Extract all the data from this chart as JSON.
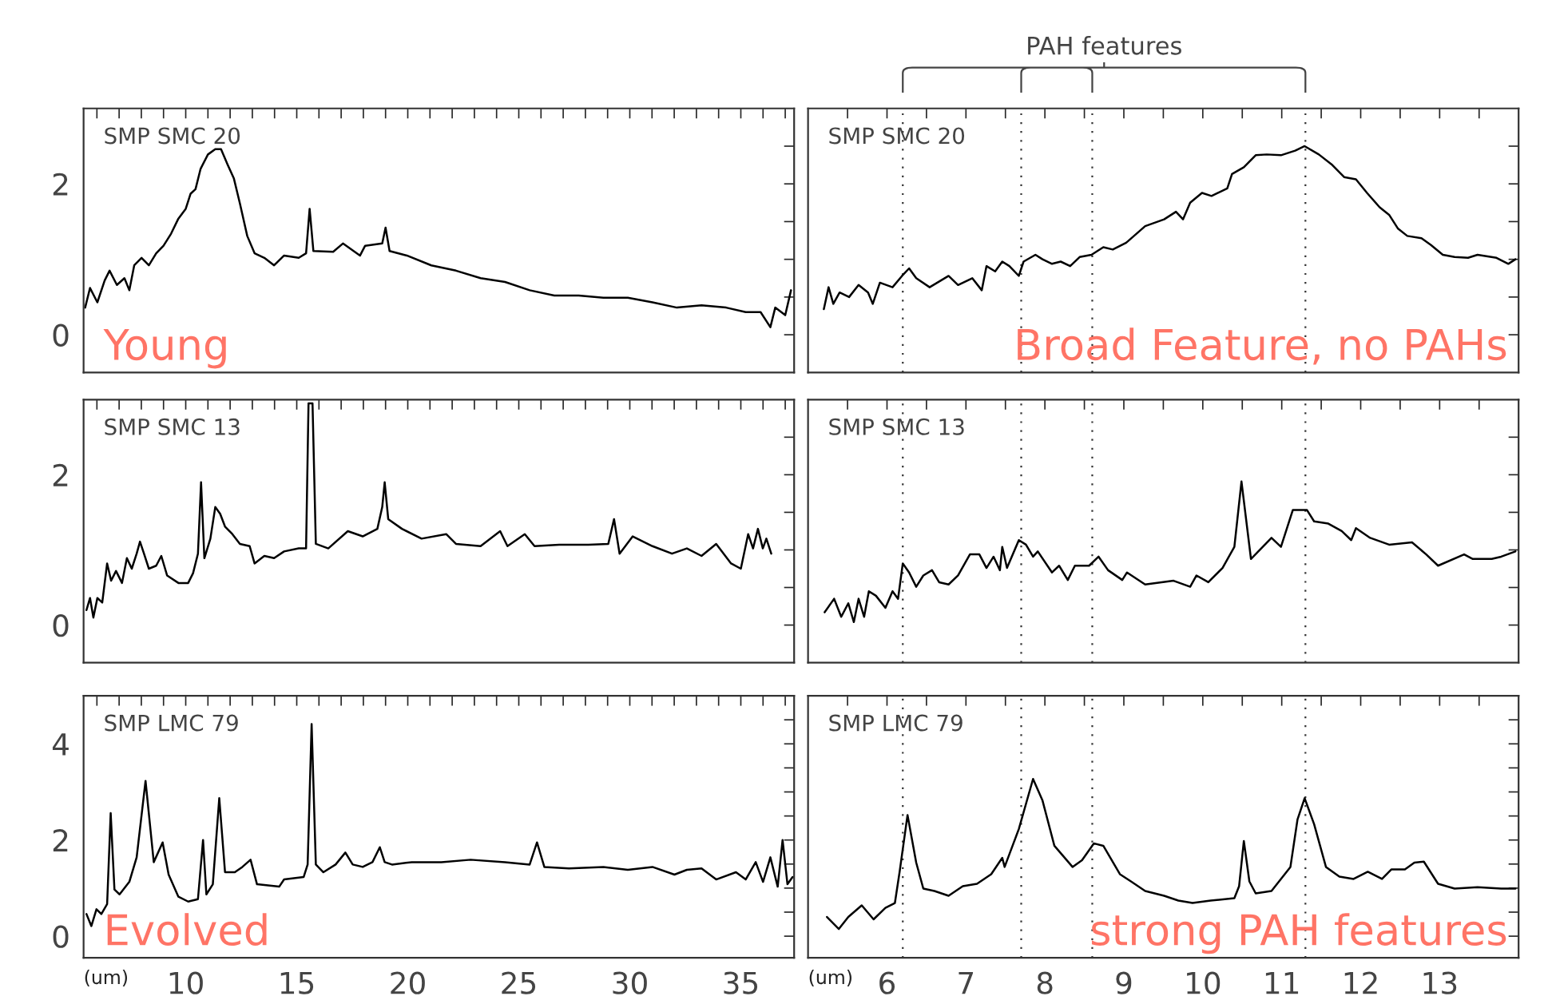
{
  "chart_data": [
    {
      "type": "line",
      "xlim": [
        5.4,
        37.4
      ],
      "ylim": [
        -0.5,
        3.0
      ],
      "tick_labels": "y",
      "grid": false,
      "xticks": [
        {
          "value": 6,
          "label": null
        },
        {
          "value": 7,
          "label": null
        },
        {
          "value": 8,
          "label": null
        },
        {
          "value": 9,
          "label": null
        },
        10,
        {
          "value": 11,
          "label": null
        },
        {
          "value": 12,
          "label": null
        },
        {
          "value": 13,
          "label": null
        },
        {
          "value": 14,
          "label": null
        },
        15,
        {
          "value": 16,
          "label": null
        },
        {
          "value": 17,
          "label": null
        },
        {
          "value": 18,
          "label": null
        },
        {
          "value": 19,
          "label": null
        },
        20,
        {
          "value": 21,
          "label": null
        },
        {
          "value": 22,
          "label": null
        },
        {
          "value": 23,
          "label": null
        },
        {
          "value": 24,
          "label": null
        },
        25,
        {
          "value": 26,
          "label": null
        },
        {
          "value": 27,
          "label": null
        },
        {
          "value": 28,
          "label": null
        },
        {
          "value": 29,
          "label": null
        },
        30,
        {
          "value": 31,
          "label": null
        },
        {
          "value": 32,
          "label": null
        },
        {
          "value": 33,
          "label": null
        },
        {
          "value": 34,
          "label": null
        },
        35,
        {
          "value": 36,
          "label": null
        },
        {
          "value": 37,
          "label": null
        }
      ],
      "yticks": [
        0,
        {
          "value": 0.5,
          "label": null
        },
        {
          "value": 1,
          "label": null
        },
        {
          "value": 1.5,
          "label": null
        },
        2,
        {
          "value": 2.5,
          "label": null
        }
      ],
      "annotations": [
        "SMP SMC 20",
        "Young"
      ],
      "series": [
        {
          "color": "#000000",
          "x": [
            5.47,
            5.69,
            6.02,
            6.35,
            6.57,
            6.9,
            7.24,
            7.46,
            7.68,
            8.01,
            8.34,
            8.67,
            9.0,
            9.34,
            9.67,
            10.0,
            10.22,
            10.44,
            10.67,
            11.0,
            11.33,
            11.59,
            11.88,
            12.17,
            12.44,
            12.77,
            13.1,
            13.54,
            13.98,
            14.43,
            15.09,
            15.42,
            15.58,
            15.75,
            16.64,
            17.08,
            17.85,
            18.08,
            18.85,
            19.0,
            19.18,
            19.96,
            21.06,
            22.17,
            23.28,
            24.38,
            25.49,
            26.6,
            27.7,
            28.81,
            29.91,
            31.02,
            32.12,
            33.23,
            34.34,
            35.22,
            35.89,
            36.33,
            36.55,
            37.0,
            37.26
          ],
          "values": [
            0.36,
            0.62,
            0.43,
            0.72,
            0.85,
            0.66,
            0.75,
            0.59,
            0.92,
            1.02,
            0.92,
            1.08,
            1.18,
            1.34,
            1.54,
            1.67,
            1.87,
            1.93,
            2.2,
            2.39,
            2.46,
            2.46,
            2.26,
            2.07,
            1.74,
            1.31,
            1.08,
            1.02,
            0.92,
            1.05,
            1.02,
            1.08,
            1.67,
            1.11,
            1.1,
            1.21,
            1.05,
            1.18,
            1.21,
            1.42,
            1.11,
            1.05,
            0.92,
            0.85,
            0.75,
            0.7,
            0.59,
            0.52,
            0.52,
            0.49,
            0.49,
            0.43,
            0.36,
            0.39,
            0.36,
            0.3,
            0.3,
            0.1,
            0.36,
            0.26,
            0.59
          ]
        }
      ]
    },
    {
      "type": "line",
      "xlim": [
        5.0,
        14.0
      ],
      "ylim": [
        -0.5,
        3.0
      ],
      "tick_labels": false,
      "grid": false,
      "xticks": [
        {
          "value": 5.5,
          "label": null
        },
        6,
        {
          "value": 6.5,
          "label": null
        },
        7,
        {
          "value": 7.5,
          "label": null
        },
        8,
        {
          "value": 8.5,
          "label": null
        },
        9,
        {
          "value": 9.5,
          "label": null
        },
        10,
        {
          "value": 10.5,
          "label": null
        },
        11,
        {
          "value": 11.5,
          "label": null
        },
        12,
        {
          "value": 12.5,
          "label": null
        },
        13,
        {
          "value": 13.5,
          "label": null
        }
      ],
      "yticks": [
        0,
        {
          "value": 0.5,
          "label": null
        },
        {
          "value": 1,
          "label": null
        },
        {
          "value": 1.5,
          "label": null
        },
        2,
        {
          "value": 2.5,
          "label": null
        }
      ],
      "annotations": [
        "SMP SMC 20",
        "Broad Feature, no PAHs",
        "PAH features"
      ],
      "ref_lines": [
        {
          "axis": "x",
          "value": 6.2,
          "color": "#333333",
          "line_style": "dotted"
        },
        {
          "axis": "x",
          "value": 7.7,
          "color": "#333333",
          "line_style": "dotted"
        },
        {
          "axis": "x",
          "value": 8.6,
          "color": "#333333",
          "line_style": "dotted"
        },
        {
          "axis": "x",
          "value": 11.3,
          "color": "#333333",
          "line_style": "dotted"
        }
      ],
      "series": [
        {
          "color": "#000000",
          "x": [
            5.2,
            5.26,
            5.32,
            5.4,
            5.52,
            5.64,
            5.76,
            5.82,
            5.91,
            6.07,
            6.19,
            6.28,
            6.37,
            6.54,
            6.78,
            6.9,
            7.08,
            7.2,
            7.26,
            7.37,
            7.46,
            7.55,
            7.67,
            7.73,
            7.88,
            7.97,
            8.09,
            8.2,
            8.32,
            8.44,
            8.59,
            8.74,
            8.86,
            9.03,
            9.27,
            9.51,
            9.66,
            9.75,
            9.84,
            9.99,
            10.11,
            10.31,
            10.37,
            10.52,
            10.67,
            10.81,
            10.99,
            11.17,
            11.29,
            11.47,
            11.64,
            11.79,
            11.94,
            12.08,
            12.24,
            12.36,
            12.47,
            12.59,
            12.77,
            12.89,
            13.04,
            13.19,
            13.36,
            13.48,
            13.72,
            13.87,
            13.96
          ],
          "values": [
            0.34,
            0.63,
            0.41,
            0.56,
            0.5,
            0.66,
            0.56,
            0.41,
            0.69,
            0.63,
            0.78,
            0.88,
            0.75,
            0.63,
            0.78,
            0.66,
            0.75,
            0.59,
            0.91,
            0.84,
            0.97,
            0.91,
            0.78,
            0.97,
            1.06,
            1.0,
            0.94,
            0.97,
            0.91,
            1.03,
            1.06,
            1.16,
            1.13,
            1.22,
            1.44,
            1.53,
            1.63,
            1.53,
            1.75,
            1.88,
            1.84,
            1.94,
            2.13,
            2.22,
            2.38,
            2.39,
            2.38,
            2.44,
            2.5,
            2.39,
            2.25,
            2.09,
            2.06,
            1.88,
            1.69,
            1.59,
            1.41,
            1.31,
            1.28,
            1.19,
            1.06,
            1.03,
            1.02,
            1.06,
            1.02,
            0.94,
            1.0
          ]
        }
      ]
    },
    {
      "type": "line",
      "xlim": [
        5.4,
        37.4
      ],
      "ylim": [
        -0.5,
        3.0
      ],
      "tick_labels": "y",
      "grid": false,
      "xticks": [
        {
          "value": 6,
          "label": null
        },
        {
          "value": 7,
          "label": null
        },
        {
          "value": 8,
          "label": null
        },
        {
          "value": 9,
          "label": null
        },
        10,
        {
          "value": 11,
          "label": null
        },
        {
          "value": 12,
          "label": null
        },
        {
          "value": 13,
          "label": null
        },
        {
          "value": 14,
          "label": null
        },
        15,
        {
          "value": 16,
          "label": null
        },
        {
          "value": 17,
          "label": null
        },
        {
          "value": 18,
          "label": null
        },
        {
          "value": 19,
          "label": null
        },
        20,
        {
          "value": 21,
          "label": null
        },
        {
          "value": 22,
          "label": null
        },
        {
          "value": 23,
          "label": null
        },
        {
          "value": 24,
          "label": null
        },
        25,
        {
          "value": 26,
          "label": null
        },
        {
          "value": 27,
          "label": null
        },
        {
          "value": 28,
          "label": null
        },
        {
          "value": 29,
          "label": null
        },
        30,
        {
          "value": 31,
          "label": null
        },
        {
          "value": 32,
          "label": null
        },
        {
          "value": 33,
          "label": null
        },
        {
          "value": 34,
          "label": null
        },
        35,
        {
          "value": 36,
          "label": null
        },
        {
          "value": 37,
          "label": null
        }
      ],
      "yticks": [
        0,
        {
          "value": 0.5,
          "label": null
        },
        {
          "value": 1,
          "label": null
        },
        {
          "value": 1.5,
          "label": null
        },
        2,
        {
          "value": 2.5,
          "label": null
        }
      ],
      "annotations": [
        "SMP SMC 13"
      ],
      "series": [
        {
          "color": "#000000",
          "x": [
            5.53,
            5.69,
            5.84,
            6.02,
            6.24,
            6.46,
            6.64,
            6.86,
            7.13,
            7.35,
            7.57,
            7.79,
            7.94,
            8.12,
            8.34,
            8.67,
            8.9,
            9.16,
            9.67,
            10.11,
            10.33,
            10.55,
            10.69,
            10.84,
            11.11,
            11.33,
            11.55,
            11.77,
            12.1,
            12.44,
            12.88,
            13.1,
            13.54,
            13.98,
            14.43,
            15.09,
            15.42,
            15.53,
            15.71,
            15.86,
            16.42,
            17.3,
            17.97,
            18.63,
            18.85,
            18.96,
            19.12,
            19.74,
            20.62,
            21.73,
            22.17,
            23.28,
            24.16,
            24.49,
            25.27,
            25.71,
            26.82,
            28.14,
            29.03,
            29.29,
            29.54,
            30.13,
            31.02,
            31.9,
            32.57,
            33.23,
            33.89,
            34.56,
            35.0,
            35.33,
            35.55,
            35.77,
            35.99,
            36.15,
            36.37
          ],
          "values": [
            0.2,
            0.36,
            0.1,
            0.36,
            0.3,
            0.82,
            0.59,
            0.72,
            0.56,
            0.89,
            0.75,
            0.95,
            1.11,
            0.95,
            0.75,
            0.79,
            0.92,
            0.66,
            0.56,
            0.56,
            0.69,
            0.95,
            1.9,
            0.89,
            1.15,
            1.57,
            1.48,
            1.31,
            1.21,
            1.08,
            1.05,
            0.82,
            0.92,
            0.89,
            0.98,
            1.02,
            1.02,
            2.95,
            2.95,
            1.08,
            1.02,
            1.25,
            1.18,
            1.28,
            1.57,
            1.9,
            1.41,
            1.28,
            1.15,
            1.21,
            1.08,
            1.05,
            1.25,
            1.05,
            1.21,
            1.05,
            1.07,
            1.07,
            1.08,
            1.41,
            0.95,
            1.18,
            1.05,
            0.95,
            1.02,
            0.92,
            1.08,
            0.82,
            0.75,
            1.21,
            1.02,
            1.28,
            1.02,
            1.15,
            0.95
          ]
        }
      ]
    },
    {
      "type": "line",
      "xlim": [
        5.0,
        14.0
      ],
      "ylim": [
        -0.5,
        3.0
      ],
      "tick_labels": false,
      "grid": false,
      "xticks": [
        {
          "value": 5.5,
          "label": null
        },
        6,
        {
          "value": 6.5,
          "label": null
        },
        7,
        {
          "value": 7.5,
          "label": null
        },
        8,
        {
          "value": 8.5,
          "label": null
        },
        9,
        {
          "value": 9.5,
          "label": null
        },
        10,
        {
          "value": 10.5,
          "label": null
        },
        11,
        {
          "value": 11.5,
          "label": null
        },
        12,
        {
          "value": 12.5,
          "label": null
        },
        13,
        {
          "value": 13.5,
          "label": null
        }
      ],
      "yticks": [
        0,
        {
          "value": 0.5,
          "label": null
        },
        {
          "value": 1,
          "label": null
        },
        {
          "value": 1.5,
          "label": null
        },
        2,
        {
          "value": 2.5,
          "label": null
        }
      ],
      "annotations": [
        "SMP SMC 13"
      ],
      "ref_lines": [
        {
          "axis": "x",
          "value": 6.2,
          "color": "#333333",
          "line_style": "dotted"
        },
        {
          "axis": "x",
          "value": 7.7,
          "color": "#333333",
          "line_style": "dotted"
        },
        {
          "axis": "x",
          "value": 8.6,
          "color": "#333333",
          "line_style": "dotted"
        },
        {
          "axis": "x",
          "value": 11.3,
          "color": "#333333",
          "line_style": "dotted"
        }
      ],
      "series": [
        {
          "color": "#000000",
          "x": [
            5.21,
            5.33,
            5.42,
            5.51,
            5.58,
            5.64,
            5.71,
            5.77,
            5.86,
            5.98,
            6.07,
            6.14,
            6.2,
            6.28,
            6.37,
            6.46,
            6.57,
            6.66,
            6.78,
            6.9,
            7.05,
            7.17,
            7.26,
            7.35,
            7.43,
            7.46,
            7.52,
            7.67,
            7.76,
            7.85,
            7.91,
            8.09,
            8.18,
            8.29,
            8.38,
            8.56,
            8.68,
            8.8,
            8.98,
            9.04,
            9.27,
            9.63,
            9.84,
            9.92,
            10.07,
            10.25,
            10.4,
            10.49,
            10.61,
            10.87,
            10.99,
            11.14,
            11.32,
            11.41,
            11.59,
            11.76,
            11.88,
            11.94,
            12.12,
            12.36,
            12.65,
            12.83,
            12.98,
            13.31,
            13.42,
            13.66,
            13.78,
            13.96
          ],
          "values": [
            0.17,
            0.35,
            0.11,
            0.29,
            0.04,
            0.35,
            0.11,
            0.45,
            0.39,
            0.23,
            0.45,
            0.35,
            0.82,
            0.7,
            0.51,
            0.66,
            0.73,
            0.57,
            0.54,
            0.66,
            0.94,
            0.94,
            0.76,
            0.91,
            0.73,
            1.04,
            0.76,
            1.13,
            1.07,
            0.91,
            0.98,
            0.7,
            0.79,
            0.6,
            0.79,
            0.79,
            0.91,
            0.73,
            0.6,
            0.7,
            0.54,
            0.59,
            0.51,
            0.66,
            0.57,
            0.76,
            1.04,
            1.91,
            0.88,
            1.16,
            1.04,
            1.53,
            1.53,
            1.38,
            1.35,
            1.25,
            1.13,
            1.29,
            1.16,
            1.07,
            1.1,
            0.94,
            0.79,
            0.94,
            0.88,
            0.88,
            0.91,
            0.98
          ]
        }
      ]
    },
    {
      "type": "line",
      "xlim": [
        5.4,
        37.4
      ],
      "ylim": [
        -0.45,
        5.0
      ],
      "grid": false,
      "xlabel": "(um)",
      "xticks": [
        {
          "value": 6,
          "label": null
        },
        {
          "value": 7,
          "label": null
        },
        {
          "value": 8,
          "label": null
        },
        {
          "value": 9,
          "label": null
        },
        10,
        {
          "value": 11,
          "label": null
        },
        {
          "value": 12,
          "label": null
        },
        {
          "value": 13,
          "label": null
        },
        {
          "value": 14,
          "label": null
        },
        15,
        {
          "value": 16,
          "label": null
        },
        {
          "value": 17,
          "label": null
        },
        {
          "value": 18,
          "label": null
        },
        {
          "value": 19,
          "label": null
        },
        20,
        {
          "value": 21,
          "label": null
        },
        {
          "value": 22,
          "label": null
        },
        {
          "value": 23,
          "label": null
        },
        {
          "value": 24,
          "label": null
        },
        25,
        {
          "value": 26,
          "label": null
        },
        {
          "value": 27,
          "label": null
        },
        {
          "value": 28,
          "label": null
        },
        {
          "value": 29,
          "label": null
        },
        30,
        {
          "value": 31,
          "label": null
        },
        {
          "value": 32,
          "label": null
        },
        {
          "value": 33,
          "label": null
        },
        {
          "value": 34,
          "label": null
        },
        35,
        {
          "value": 36,
          "label": null
        },
        {
          "value": 37,
          "label": null
        }
      ],
      "yticks": [
        0,
        {
          "value": 0.5,
          "label": null
        },
        {
          "value": 1,
          "label": null
        },
        {
          "value": 1.5,
          "label": null
        },
        2,
        {
          "value": 2.5,
          "label": null
        },
        {
          "value": 3,
          "label": null
        },
        {
          "value": 3.5,
          "label": null
        },
        4,
        {
          "value": 4.5,
          "label": null
        }
      ],
      "annotations": [
        "SMP LMC 79",
        "Evolved"
      ],
      "series": [
        {
          "color": "#000000",
          "x": [
            5.53,
            5.75,
            5.98,
            6.2,
            6.46,
            6.62,
            6.79,
            7.02,
            7.46,
            7.79,
            8.19,
            8.56,
            8.96,
            9.23,
            9.67,
            10.11,
            10.55,
            10.78,
            10.93,
            11.22,
            11.51,
            11.77,
            12.21,
            12.55,
            12.92,
            13.21,
            14.21,
            14.43,
            15.31,
            15.49,
            15.67,
            15.86,
            16.2,
            16.75,
            17.19,
            17.52,
            17.97,
            18.41,
            18.74,
            18.96,
            19.29,
            20.18,
            21.51,
            22.83,
            24.38,
            25.49,
            25.82,
            26.15,
            27.26,
            28.81,
            29.91,
            31.02,
            32.01,
            32.57,
            33.23,
            33.89,
            34.78,
            35.22,
            35.67,
            36.0,
            36.33,
            36.66,
            36.88,
            37.1,
            37.33
          ],
          "values": [
            0.46,
            0.21,
            0.56,
            0.46,
            0.67,
            2.56,
            0.97,
            0.87,
            1.13,
            1.64,
            3.23,
            1.54,
            1.95,
            1.28,
            0.82,
            0.72,
            0.77,
            2.0,
            0.87,
            1.08,
            2.87,
            1.33,
            1.33,
            1.44,
            1.59,
            1.08,
            1.03,
            1.18,
            1.23,
            1.49,
            4.41,
            1.49,
            1.33,
            1.49,
            1.74,
            1.49,
            1.44,
            1.54,
            1.85,
            1.54,
            1.49,
            1.54,
            1.54,
            1.59,
            1.54,
            1.49,
            1.95,
            1.44,
            1.41,
            1.44,
            1.38,
            1.44,
            1.28,
            1.38,
            1.41,
            1.18,
            1.33,
            1.18,
            1.54,
            1.13,
            1.64,
            1.03,
            2.0,
            1.08,
            1.23
          ]
        }
      ]
    },
    {
      "type": "line",
      "xlim": [
        5.0,
        14.0
      ],
      "ylim": [
        -0.45,
        5.0
      ],
      "tick_labels": "x",
      "grid": false,
      "xlabel": "(um)",
      "xticks": [
        {
          "value": 5.5,
          "label": null
        },
        6,
        {
          "value": 6.5,
          "label": null
        },
        7,
        {
          "value": 7.5,
          "label": null
        },
        8,
        {
          "value": 8.5,
          "label": null
        },
        9,
        {
          "value": 9.5,
          "label": null
        },
        10,
        {
          "value": 10.5,
          "label": null
        },
        11,
        {
          "value": 11.5,
          "label": null
        },
        12,
        {
          "value": 12.5,
          "label": null
        },
        13,
        {
          "value": 13.5,
          "label": null
        }
      ],
      "yticks": [
        0,
        {
          "value": 0.5,
          "label": null
        },
        {
          "value": 1,
          "label": null
        },
        {
          "value": 1.5,
          "label": null
        },
        2,
        {
          "value": 2.5,
          "label": null
        },
        {
          "value": 3,
          "label": null
        },
        {
          "value": 3.5,
          "label": null
        },
        4,
        {
          "value": 4.5,
          "label": null
        }
      ],
      "annotations": [
        "SMP LMC 79",
        "strong PAH features"
      ],
      "ref_lines": [
        {
          "axis": "x",
          "value": 6.2,
          "color": "#333333",
          "line_style": "dotted"
        },
        {
          "axis": "x",
          "value": 7.7,
          "color": "#333333",
          "line_style": "dotted"
        },
        {
          "axis": "x",
          "value": 8.6,
          "color": "#333333",
          "line_style": "dotted"
        },
        {
          "axis": "x",
          "value": 11.3,
          "color": "#333333",
          "line_style": "dotted"
        }
      ],
      "series": [
        {
          "color": "#000000",
          "x": [
            5.24,
            5.39,
            5.51,
            5.68,
            5.83,
            5.98,
            6.1,
            6.16,
            6.26,
            6.37,
            6.46,
            6.6,
            6.78,
            6.96,
            7.14,
            7.32,
            7.46,
            7.49,
            7.67,
            7.85,
            7.97,
            8.12,
            8.35,
            8.47,
            8.62,
            8.74,
            8.95,
            9.09,
            9.27,
            9.51,
            9.69,
            9.87,
            10.1,
            10.4,
            10.46,
            10.52,
            10.59,
            10.67,
            10.87,
            11.11,
            11.2,
            11.29,
            11.41,
            11.56,
            11.73,
            11.91,
            12.09,
            12.27,
            12.39,
            12.56,
            12.68,
            12.8,
            12.98,
            13.19,
            13.48,
            13.78,
            13.96
          ],
          "values": [
            0.4,
            0.15,
            0.4,
            0.64,
            0.35,
            0.59,
            0.69,
            1.34,
            2.52,
            1.53,
            0.99,
            0.94,
            0.84,
            1.04,
            1.09,
            1.29,
            1.63,
            1.44,
            2.23,
            3.27,
            2.82,
            1.88,
            1.44,
            1.58,
            1.93,
            1.88,
            1.29,
            1.14,
            0.94,
            0.84,
            0.74,
            0.69,
            0.74,
            0.79,
            1.04,
            1.98,
            1.14,
            0.89,
            0.94,
            1.44,
            2.43,
            2.87,
            2.33,
            1.44,
            1.24,
            1.19,
            1.34,
            1.19,
            1.39,
            1.39,
            1.53,
            1.55,
            1.09,
            0.99,
            1.02,
            0.99,
            0.99
          ]
        }
      ]
    }
  ]
}
